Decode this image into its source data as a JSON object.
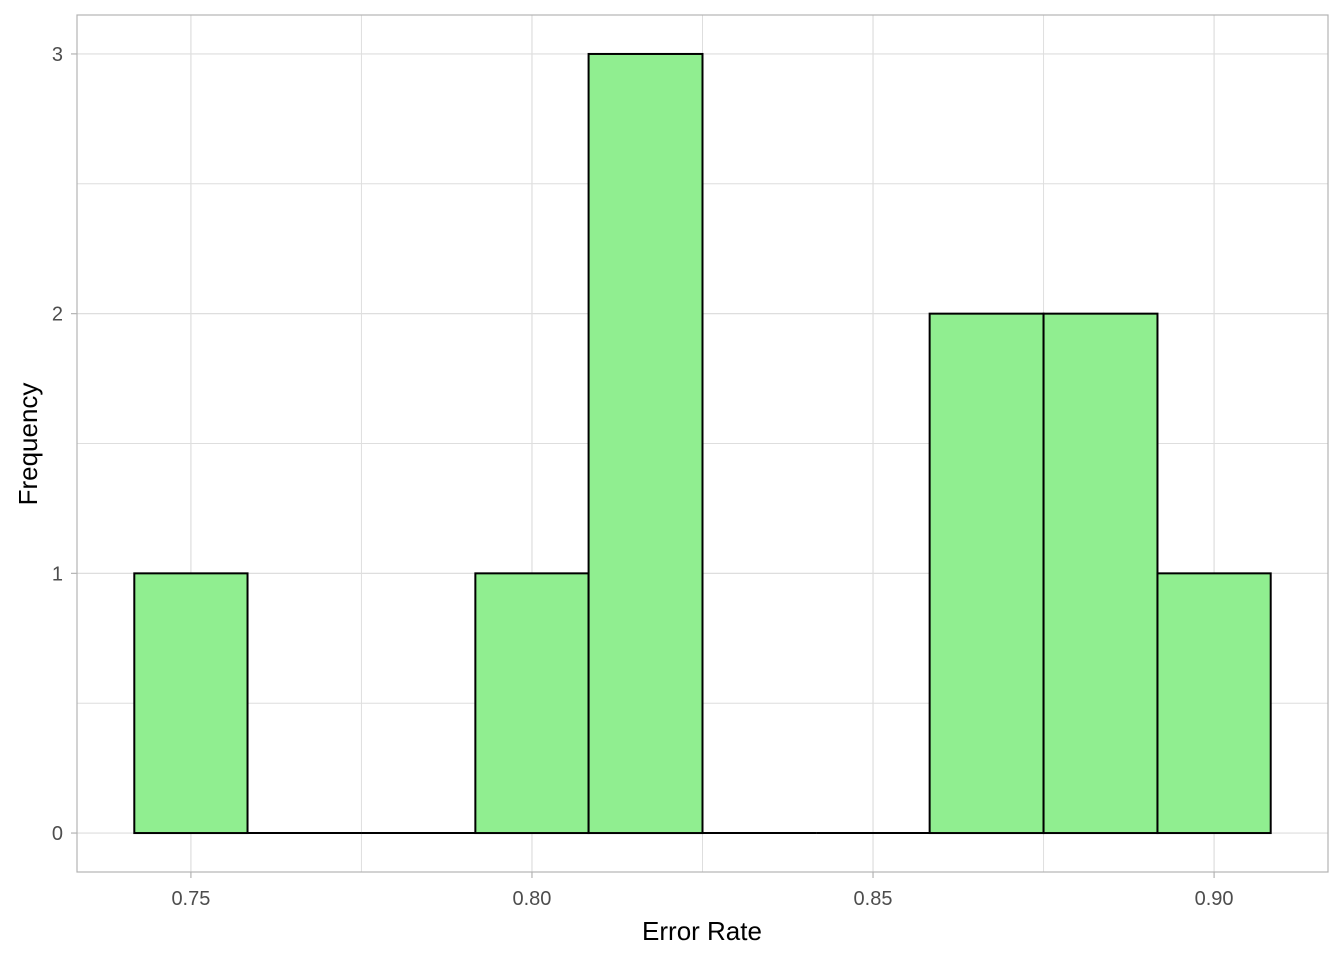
{
  "chart_data": {
    "type": "bar",
    "title": "",
    "xlabel": "Error Rate",
    "ylabel": "Frequency",
    "bins": [
      {
        "x0": 0.7417,
        "x1": 0.7583,
        "count": 1
      },
      {
        "x0": 0.7583,
        "x1": 0.775,
        "count": 0
      },
      {
        "x0": 0.775,
        "x1": 0.7917,
        "count": 0
      },
      {
        "x0": 0.7917,
        "x1": 0.8083,
        "count": 1
      },
      {
        "x0": 0.8083,
        "x1": 0.825,
        "count": 3
      },
      {
        "x0": 0.825,
        "x1": 0.8417,
        "count": 0
      },
      {
        "x0": 0.8417,
        "x1": 0.8583,
        "count": 0
      },
      {
        "x0": 0.8583,
        "x1": 0.875,
        "count": 2
      },
      {
        "x0": 0.875,
        "x1": 0.8917,
        "count": 2
      },
      {
        "x0": 0.8917,
        "x1": 0.9083,
        "count": 1
      }
    ],
    "xlim": [
      0.7333,
      0.9167
    ],
    "ylim": [
      -0.15,
      3.15
    ],
    "xticks": [
      0.75,
      0.8,
      0.85,
      0.9
    ],
    "xtick_labels": [
      "0.75",
      "0.80",
      "0.85",
      "0.90"
    ],
    "yticks": [
      0,
      1,
      2,
      3
    ],
    "ytick_labels": [
      "0",
      "1",
      "2",
      "3"
    ],
    "grid": true,
    "colors": {
      "bar_fill": "#90ee90",
      "bar_stroke": "#000000",
      "grid": "#dedede",
      "panel_border": "#b3b3b3"
    }
  }
}
